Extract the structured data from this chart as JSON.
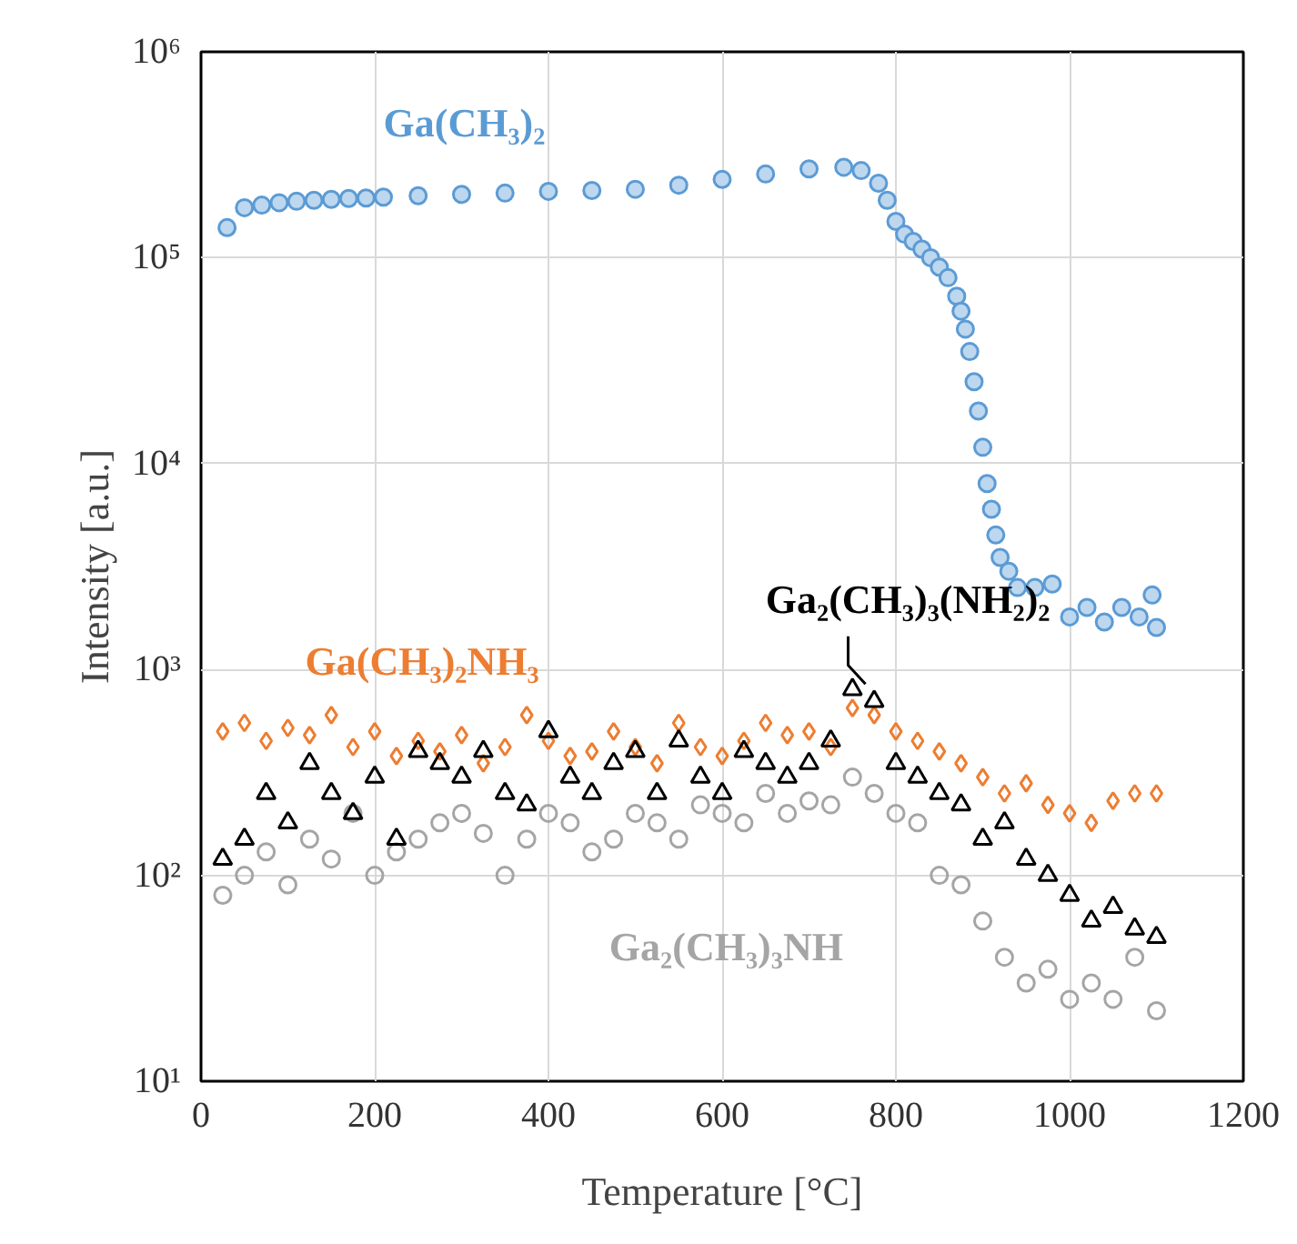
{
  "chart_data": {
    "type": "scatter",
    "xlabel": "Temperature [°C]",
    "ylabel": "Intensity [a.u.]",
    "log": "y",
    "grid": true,
    "xlim": [
      0,
      1200
    ],
    "xticks": [
      0,
      200,
      400,
      600,
      800,
      1000,
      1200
    ],
    "ylim": [
      10,
      1000000
    ],
    "yticks": [
      {
        "value": 10,
        "label": "10¹"
      },
      {
        "value": 100,
        "label": "10²"
      },
      {
        "value": 1000,
        "label": "10³"
      },
      {
        "value": 10000,
        "label": "10⁴"
      },
      {
        "value": 100000,
        "label": "10⁵"
      },
      {
        "value": 1000000,
        "label": "10⁶"
      }
    ],
    "series": [
      {
        "name": "Ga₂(CH₃)₃NH",
        "color": "#a5a5a5",
        "marker": "circle",
        "x": [
          25,
          50,
          75,
          100,
          125,
          150,
          175,
          200,
          225,
          250,
          275,
          300,
          325,
          350,
          375,
          400,
          425,
          450,
          475,
          500,
          525,
          550,
          575,
          600,
          625,
          650,
          675,
          700,
          725,
          750,
          775,
          800,
          825,
          850,
          875,
          900,
          925,
          950,
          975,
          1000,
          1025,
          1050,
          1075,
          1100
        ],
        "values": [
          80,
          100,
          130,
          90,
          150,
          120,
          200,
          100,
          130,
          150,
          180,
          200,
          160,
          100,
          150,
          200,
          180,
          130,
          150,
          200,
          180,
          150,
          220,
          200,
          180,
          250,
          200,
          230,
          220,
          300,
          250,
          200,
          180,
          100,
          90,
          60,
          40,
          30,
          35,
          25,
          30,
          25,
          40,
          22
        ]
      },
      {
        "name": "Ga(CH₃)₂NH₃",
        "color": "#ed7d31",
        "marker": "diamond",
        "x": [
          25,
          50,
          75,
          100,
          125,
          150,
          175,
          200,
          225,
          250,
          275,
          300,
          325,
          350,
          375,
          400,
          425,
          450,
          475,
          500,
          525,
          550,
          575,
          600,
          625,
          650,
          675,
          700,
          725,
          750,
          775,
          800,
          825,
          850,
          875,
          900,
          925,
          950,
          975,
          1000,
          1025,
          1050,
          1075,
          1100
        ],
        "values": [
          500,
          550,
          450,
          520,
          480,
          600,
          420,
          500,
          380,
          450,
          400,
          480,
          350,
          420,
          600,
          450,
          380,
          400,
          500,
          420,
          350,
          550,
          420,
          380,
          450,
          550,
          480,
          500,
          420,
          650,
          600,
          500,
          450,
          400,
          350,
          300,
          250,
          280,
          220,
          200,
          180,
          230,
          250,
          250
        ]
      },
      {
        "name": "Ga₂(CH₃)₃(NH₂)₂",
        "color": "#000000",
        "marker": "triangle",
        "x": [
          25,
          50,
          75,
          100,
          125,
          150,
          175,
          200,
          225,
          250,
          275,
          300,
          325,
          350,
          375,
          400,
          425,
          450,
          475,
          500,
          525,
          550,
          575,
          600,
          625,
          650,
          675,
          700,
          725,
          750,
          775,
          800,
          825,
          850,
          875,
          900,
          925,
          950,
          975,
          1000,
          1025,
          1050,
          1075,
          1100
        ],
        "values": [
          120,
          150,
          250,
          180,
          350,
          250,
          200,
          300,
          150,
          400,
          350,
          300,
          400,
          250,
          220,
          500,
          300,
          250,
          350,
          400,
          250,
          450,
          300,
          250,
          400,
          350,
          300,
          350,
          450,
          800,
          700,
          350,
          300,
          250,
          220,
          150,
          180,
          120,
          100,
          80,
          60,
          70,
          55,
          50
        ]
      },
      {
        "name": "Ga(CH₃)₂",
        "color": "#5b9bd5",
        "marker": "circle",
        "x": [
          30,
          50,
          70,
          90,
          110,
          130,
          150,
          170,
          190,
          210,
          250,
          300,
          350,
          400,
          450,
          500,
          550,
          600,
          650,
          700,
          740,
          760,
          780,
          790,
          800,
          810,
          820,
          830,
          840,
          850,
          860,
          870,
          875,
          880,
          885,
          890,
          895,
          900,
          905,
          910,
          915,
          920,
          930,
          940,
          960,
          980,
          1000,
          1020,
          1040,
          1060,
          1080,
          1095,
          1100
        ],
        "values": [
          140000,
          175000,
          180000,
          185000,
          188000,
          190000,
          192000,
          194000,
          195000,
          197000,
          200000,
          203000,
          206000,
          210000,
          212000,
          215000,
          225000,
          240000,
          255000,
          270000,
          275000,
          265000,
          230000,
          190000,
          150000,
          130000,
          120000,
          110000,
          100000,
          90000,
          80000,
          65000,
          55000,
          45000,
          35000,
          25000,
          18000,
          12000,
          8000,
          6000,
          4500,
          3500,
          3000,
          2500,
          2500,
          2600,
          1800,
          2000,
          1700,
          2000,
          1800,
          2300,
          1600
        ]
      }
    ]
  }
}
